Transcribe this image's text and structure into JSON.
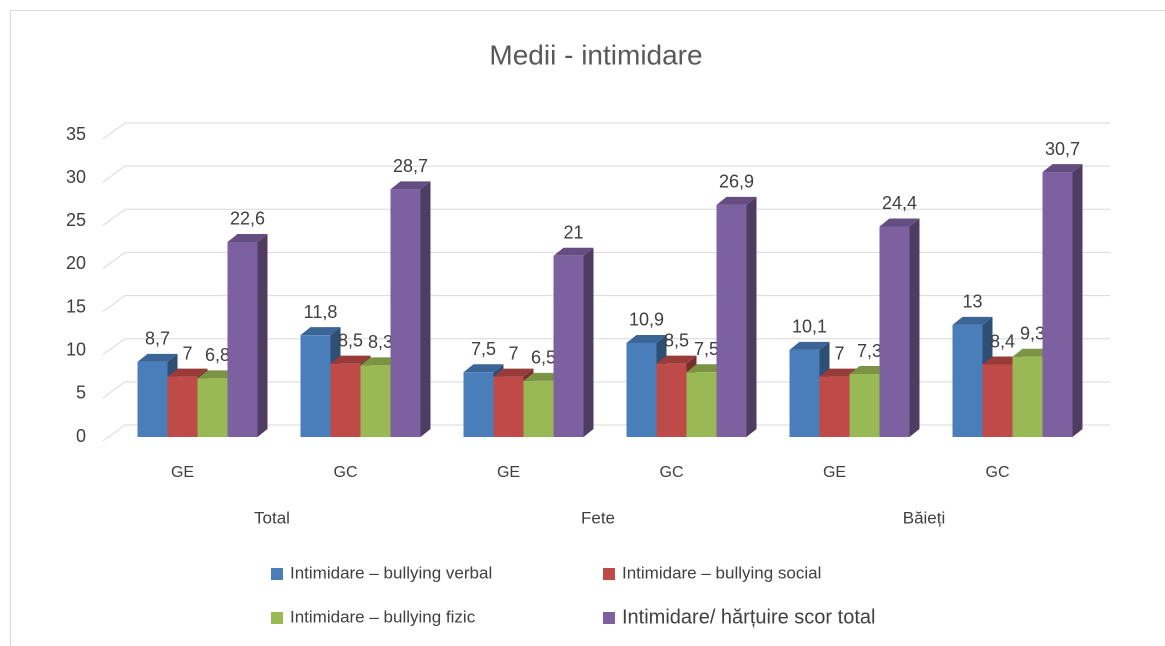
{
  "chart_data": {
    "type": "bar3d",
    "title": "Medii - intimidare",
    "categories": [
      "GE",
      "GC",
      "GE",
      "GC",
      "GE",
      "GC"
    ],
    "groups": [
      "Total",
      "Fete",
      "Băieți"
    ],
    "series": [
      {
        "name": "Intimidare – bullying verbal",
        "color": "#4a7ebb",
        "values": [
          8.7,
          11.8,
          7.5,
          10.9,
          10.1,
          13
        ],
        "value_labels": [
          "8,7",
          "11,8",
          "7,5",
          "10,9",
          "10,1",
          "13"
        ]
      },
      {
        "name": "Intimidare – bullying social",
        "color": "#be4b48",
        "values": [
          7,
          8.5,
          7,
          8.5,
          7,
          8.4
        ],
        "value_labels": [
          "7",
          "8,5",
          "7",
          "8,5",
          "7",
          "8,4"
        ]
      },
      {
        "name": "Intimidare – bullying fizic",
        "color": "#98b954",
        "values": [
          6.8,
          8.3,
          6.5,
          7.5,
          7.3,
          9.3
        ],
        "value_labels": [
          "6,8",
          "8,3",
          "6,5",
          "7,5",
          "7,3",
          "9,3"
        ]
      },
      {
        "name": "Intimidare/ hărțuire scor total",
        "color": "#7d60a0",
        "values": [
          22.6,
          28.7,
          21,
          26.9,
          24.4,
          30.7
        ],
        "value_labels": [
          "22,6",
          "28,7",
          "21",
          "26,9",
          "24,4",
          "30,7"
        ]
      }
    ],
    "ylim": [
      0,
      35
    ],
    "yticks": [
      0,
      5,
      10,
      15,
      20,
      25,
      30,
      35
    ],
    "grid": true
  }
}
